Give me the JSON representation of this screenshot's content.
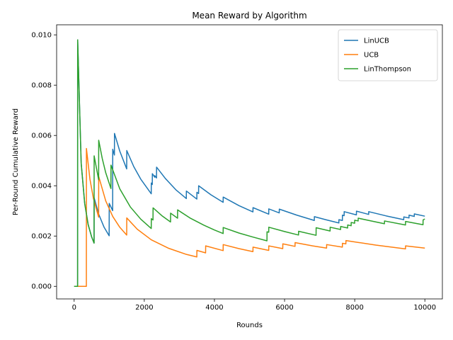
{
  "chart_data": {
    "type": "line",
    "title": "Mean Reward by Algorithm",
    "xlabel": "Rounds",
    "ylabel": "Per-Round Cumulative Reward",
    "xlim": [
      -500,
      10500
    ],
    "ylim": [
      -0.0005,
      0.0104
    ],
    "xticks": [
      0,
      2000,
      4000,
      6000,
      8000,
      10000
    ],
    "xtick_labels": [
      "0",
      "2000",
      "4000",
      "6000",
      "8000",
      "10000"
    ],
    "yticks": [
      0.0,
      0.002,
      0.004,
      0.006,
      0.008,
      0.01
    ],
    "ytick_labels": [
      "0.000",
      "0.002",
      "0.004",
      "0.006",
      "0.008",
      "0.010"
    ],
    "grid": false,
    "legend_position": "top-right",
    "series": [
      {
        "name": "LinUCB",
        "color": "#1f77b4",
        "jumps": [
          100,
          570,
          1000,
          1100,
          1150,
          1500,
          2200,
          2230,
          2300,
          2350,
          3200,
          3500,
          3550,
          4250,
          5100,
          5550,
          5850,
          6850,
          7550,
          7650,
          7700,
          8050,
          8400,
          9400,
          9550,
          9700
        ],
        "points": [
          [
            0,
            0
          ],
          [
            98,
            0
          ],
          [
            100,
            0.0098
          ],
          [
            200,
            0.0049
          ],
          [
            300,
            0.0033
          ],
          [
            400,
            0.00245
          ],
          [
            500,
            0.00196
          ],
          [
            568,
            0.00172
          ],
          [
            570,
            0.00352
          ],
          [
            700,
            0.00287
          ],
          [
            850,
            0.00236
          ],
          [
            998,
            0.00201
          ],
          [
            1000,
            0.0033
          ],
          [
            1098,
            0.00301
          ],
          [
            1100,
            0.00545
          ],
          [
            1148,
            0.00522
          ],
          [
            1150,
            0.00608
          ],
          [
            1300,
            0.00538
          ],
          [
            1498,
            0.00467
          ],
          [
            1500,
            0.0054
          ],
          [
            1700,
            0.00476
          ],
          [
            1900,
            0.00426
          ],
          [
            2198,
            0.00368
          ],
          [
            2200,
            0.00411
          ],
          [
            2228,
            0.00405
          ],
          [
            2230,
            0.00448
          ],
          [
            2298,
            0.00434
          ],
          [
            2300,
            0.0044
          ],
          [
            2348,
            0.00431
          ],
          [
            2350,
            0.00474
          ],
          [
            2600,
            0.00429
          ],
          [
            2900,
            0.00384
          ],
          [
            3198,
            0.00349
          ],
          [
            3200,
            0.00379
          ],
          [
            3498,
            0.00347
          ],
          [
            3500,
            0.00374
          ],
          [
            3548,
            0.00369
          ],
          [
            3550,
            0.004
          ],
          [
            3900,
            0.00364
          ],
          [
            4248,
            0.00334
          ],
          [
            4250,
            0.00355
          ],
          [
            4700,
            0.00321
          ],
          [
            5098,
            0.00296
          ],
          [
            5100,
            0.00313
          ],
          [
            5548,
            0.00287
          ],
          [
            5550,
            0.00308
          ],
          [
            5848,
            0.00292
          ],
          [
            5850,
            0.00307
          ],
          [
            6350,
            0.00283
          ],
          [
            6848,
            0.00262
          ],
          [
            6850,
            0.00277
          ],
          [
            7200,
            0.00264
          ],
          [
            7548,
            0.00252
          ],
          [
            7550,
            0.00265
          ],
          [
            7648,
            0.00262
          ],
          [
            7650,
            0.00283
          ],
          [
            7698,
            0.00281
          ],
          [
            7700,
            0.00297
          ],
          [
            8048,
            0.00284
          ],
          [
            8050,
            0.00299
          ],
          [
            8398,
            0.00286
          ],
          [
            8400,
            0.00297
          ],
          [
            8900,
            0.0028
          ],
          [
            9398,
            0.00265
          ],
          [
            9400,
            0.00276
          ],
          [
            9548,
            0.00272
          ],
          [
            9550,
            0.00283
          ],
          [
            9698,
            0.00278
          ],
          [
            9700,
            0.00288
          ],
          [
            10000,
            0.00279
          ]
        ]
      },
      {
        "name": "UCB",
        "color": "#ff7f0e",
        "jumps": [
          350,
          700,
          1500,
          3500,
          3750,
          4250,
          5100,
          5550,
          5950,
          6300,
          7200,
          7650,
          7750,
          9450
        ],
        "points": [
          [
            0,
            0
          ],
          [
            248,
            0
          ],
          [
            250,
            0
          ],
          [
            348,
            0
          ],
          [
            350,
            0.00548
          ],
          [
            450,
            0.00426
          ],
          [
            550,
            0.00349
          ],
          [
            698,
            0.00275
          ],
          [
            700,
            0.00437
          ],
          [
            900,
            0.0034
          ],
          [
            1100,
            0.00278
          ],
          [
            1300,
            0.00235
          ],
          [
            1498,
            0.00204
          ],
          [
            1500,
            0.00272
          ],
          [
            1800,
            0.00227
          ],
          [
            2200,
            0.00185
          ],
          [
            2700,
            0.00151
          ],
          [
            3200,
            0.00127
          ],
          [
            3498,
            0.00117
          ],
          [
            3500,
            0.00143
          ],
          [
            3748,
            0.00133
          ],
          [
            3750,
            0.00161
          ],
          [
            4248,
            0.00142
          ],
          [
            4250,
            0.00166
          ],
          [
            4700,
            0.0015
          ],
          [
            5098,
            0.00138
          ],
          [
            5100,
            0.00156
          ],
          [
            5548,
            0.00143
          ],
          [
            5550,
            0.00161
          ],
          [
            5948,
            0.0015
          ],
          [
            5950,
            0.00169
          ],
          [
            6298,
            0.00159
          ],
          [
            6300,
            0.00174
          ],
          [
            6800,
            0.00161
          ],
          [
            7198,
            0.00152
          ],
          [
            7200,
            0.00166
          ],
          [
            7648,
            0.00156
          ],
          [
            7650,
            0.00171
          ],
          [
            7748,
            0.00169
          ],
          [
            7750,
            0.00182
          ],
          [
            8600,
            0.00164
          ],
          [
            9448,
            0.00149
          ],
          [
            9450,
            0.00161
          ],
          [
            10000,
            0.00152
          ]
        ]
      },
      {
        "name": "LinThompson",
        "color": "#2ca02c",
        "jumps": [
          100,
          570,
          700,
          1050,
          2200,
          2250,
          2750,
          2950,
          4250,
          5500,
          5550,
          6400,
          6900,
          7300,
          7600,
          7800,
          7900,
          8000,
          8100,
          8850,
          9450,
          9950,
          10000
        ],
        "points": [
          [
            0,
            0
          ],
          [
            98,
            0
          ],
          [
            100,
            0.0098
          ],
          [
            200,
            0.0049
          ],
          [
            300,
            0.0033
          ],
          [
            400,
            0.00245
          ],
          [
            500,
            0.00196
          ],
          [
            568,
            0.00172
          ],
          [
            570,
            0.00519
          ],
          [
            698,
            0.00424
          ],
          [
            700,
            0.00581
          ],
          [
            800,
            0.00509
          ],
          [
            900,
            0.00452
          ],
          [
            1048,
            0.00389
          ],
          [
            1050,
            0.00482
          ],
          [
            1300,
            0.00388
          ],
          [
            1600,
            0.00316
          ],
          [
            1900,
            0.00267
          ],
          [
            2198,
            0.0023
          ],
          [
            2200,
            0.00269
          ],
          [
            2248,
            0.00264
          ],
          [
            2250,
            0.00312
          ],
          [
            2500,
            0.00281
          ],
          [
            2748,
            0.00256
          ],
          [
            2750,
            0.00291
          ],
          [
            2948,
            0.00271
          ],
          [
            2950,
            0.00304
          ],
          [
            3300,
            0.00272
          ],
          [
            3700,
            0.00243
          ],
          [
            4000,
            0.00224
          ],
          [
            4248,
            0.0021
          ],
          [
            4250,
            0.00234
          ],
          [
            4700,
            0.00212
          ],
          [
            5100,
            0.00196
          ],
          [
            5498,
            0.00181
          ],
          [
            5500,
            0.00217
          ],
          [
            5548,
            0.00215
          ],
          [
            5550,
            0.00235
          ],
          [
            6000,
            0.00218
          ],
          [
            6398,
            0.00204
          ],
          [
            6400,
            0.00219
          ],
          [
            6898,
            0.00203
          ],
          [
            6900,
            0.00233
          ],
          [
            7298,
            0.0022
          ],
          [
            7300,
            0.00235
          ],
          [
            7598,
            0.00226
          ],
          [
            7600,
            0.00238
          ],
          [
            7798,
            0.00232
          ],
          [
            7800,
            0.00244
          ],
          [
            7898,
            0.00241
          ],
          [
            7900,
            0.00254
          ],
          [
            7998,
            0.00251
          ],
          [
            8000,
            0.00263
          ],
          [
            8098,
            0.0026
          ],
          [
            8100,
            0.00271
          ],
          [
            8500,
            0.00259
          ],
          [
            8848,
            0.00249
          ],
          [
            8850,
            0.0026
          ],
          [
            9448,
            0.00244
          ],
          [
            9450,
            0.00258
          ],
          [
            9948,
            0.00245
          ],
          [
            9950,
            0.00264
          ],
          [
            10000,
            0.00268
          ]
        ]
      }
    ]
  }
}
